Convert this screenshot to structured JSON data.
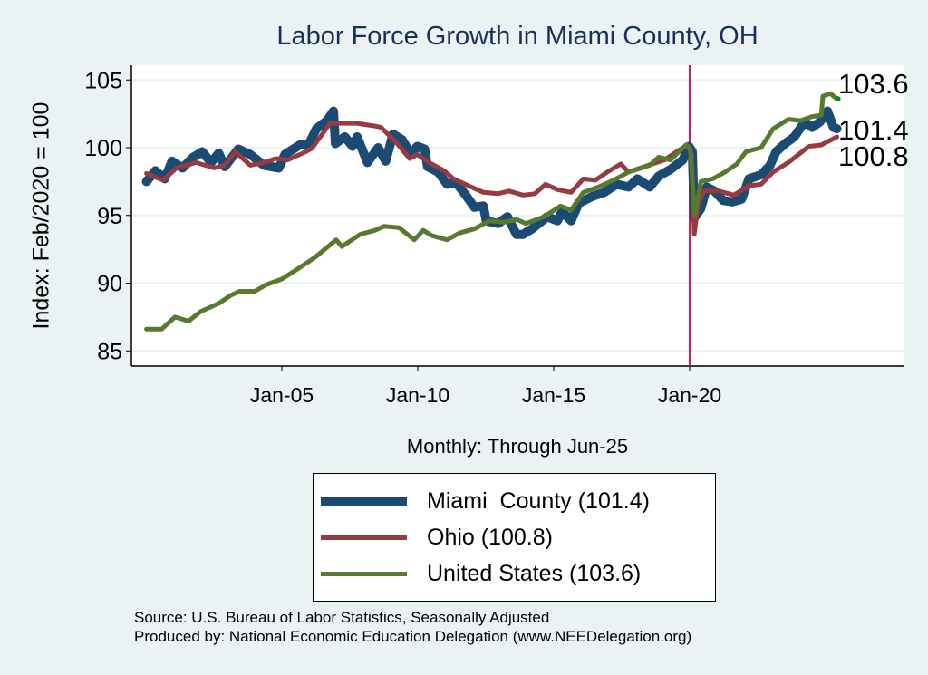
{
  "chart_data": {
    "type": "line",
    "title": "Labor Force Growth in Miami  County, OH",
    "ylabel": "Index: Feb/2020 = 100",
    "xlabel": "Monthly: Through Jun-25",
    "ylim": [
      84,
      106
    ],
    "xlim": [
      1999.5,
      2028.0
    ],
    "yticks": [
      85,
      90,
      95,
      100,
      105
    ],
    "ytick_labels": [
      "85",
      "90",
      "95",
      "100",
      "105"
    ],
    "xticks": [
      2005,
      2010,
      2015,
      2020
    ],
    "xtick_labels": [
      "Jan-05",
      "Jan-10",
      "Jan-15",
      "Jan-20"
    ],
    "grid": true,
    "vline": 2020.0,
    "legend_position": "bottom",
    "series": [
      {
        "name": "Miami  County (101.4)",
        "color": "#1b4a72",
        "last_label": "101.4",
        "x": [
          2000.02,
          2000.35,
          2000.69,
          2000.96,
          2001.35,
          2001.74,
          2002.07,
          2002.4,
          2002.68,
          2002.9,
          2003.4,
          2003.84,
          2004.34,
          2004.89,
          2005.11,
          2005.66,
          2006.0,
          2006.27,
          2006.66,
          2006.9,
          2006.97,
          2007.32,
          2007.6,
          2007.77,
          2008.15,
          2008.54,
          2008.82,
          2009.09,
          2009.42,
          2009.76,
          2009.98,
          2010.25,
          2010.36,
          2010.75,
          2011.08,
          2011.42,
          2011.8,
          2012.08,
          2012.41,
          2012.52,
          2012.96,
          2013.3,
          2013.63,
          2013.87,
          2014.2,
          2014.76,
          2015.14,
          2015.31,
          2015.64,
          2015.92,
          2016.42,
          2016.86,
          2017.31,
          2017.75,
          2018.08,
          2018.53,
          2018.86,
          2019.3,
          2019.75,
          2019.97,
          2020.1,
          2020.17,
          2020.41,
          2020.63,
          2020.91,
          2021.24,
          2021.57,
          2021.91,
          2022.18,
          2022.63,
          2022.96,
          2023.18,
          2023.51,
          2023.85,
          2024.23,
          2024.51,
          2024.79,
          2025.07,
          2025.29,
          2025.42
        ],
        "y": [
          97.5,
          98.3,
          97.7,
          99.0,
          98.5,
          99.3,
          99.7,
          98.9,
          99.6,
          98.6,
          99.9,
          99.5,
          98.7,
          98.5,
          99.5,
          100.2,
          100.3,
          101.4,
          102.0,
          102.7,
          100.3,
          100.8,
          100.1,
          100.8,
          98.9,
          100.0,
          99.0,
          101.0,
          100.6,
          99.5,
          100.1,
          99.9,
          98.6,
          98.2,
          97.3,
          97.4,
          96.4,
          95.6,
          95.7,
          94.6,
          94.4,
          94.9,
          93.6,
          93.6,
          94.0,
          94.9,
          94.6,
          95.3,
          94.6,
          95.9,
          96.4,
          96.7,
          97.3,
          97.1,
          97.7,
          97.1,
          97.9,
          98.4,
          99.1,
          100.1,
          99.7,
          94.8,
          95.5,
          97.1,
          96.8,
          96.1,
          96.0,
          96.2,
          97.7,
          98.0,
          98.7,
          99.7,
          100.3,
          100.8,
          101.9,
          101.5,
          101.9,
          102.7,
          101.5,
          101.4
        ]
      },
      {
        "name": "Ohio (100.8)",
        "color": "#973b40",
        "last_label": "100.8",
        "x": [
          2000.02,
          2000.63,
          2001.13,
          2001.85,
          2002.51,
          2002.9,
          2003.29,
          2003.84,
          2004.34,
          2004.78,
          2005.22,
          2005.88,
          2006.11,
          2006.77,
          2007.1,
          2007.77,
          2008.43,
          2008.65,
          2009.2,
          2009.7,
          2009.98,
          2010.42,
          2010.97,
          2011.31,
          2011.86,
          2012.41,
          2012.96,
          2013.35,
          2013.87,
          2014.31,
          2014.7,
          2015.14,
          2015.64,
          2016.09,
          2016.53,
          2016.97,
          2017.47,
          2017.75,
          2018.19,
          2018.64,
          2019.08,
          2019.52,
          2019.91,
          2020.08,
          2020.17,
          2020.3,
          2020.52,
          2021.07,
          2021.63,
          2022.18,
          2022.63,
          2023.07,
          2023.63,
          2024.07,
          2024.4,
          2024.84,
          2025.42
        ],
        "y": [
          98.1,
          97.6,
          98.5,
          98.9,
          98.5,
          98.7,
          99.7,
          98.7,
          98.9,
          99.2,
          99.1,
          99.7,
          99.95,
          101.8,
          101.8,
          101.8,
          101.6,
          101.5,
          100.4,
          99.2,
          99.5,
          98.9,
          98.3,
          97.7,
          97.2,
          96.7,
          96.6,
          96.8,
          96.5,
          96.6,
          97.3,
          96.9,
          96.7,
          97.7,
          97.6,
          98.2,
          98.8,
          98.2,
          98.5,
          98.8,
          99.1,
          99.7,
          100.2,
          99.5,
          93.6,
          95.7,
          96.8,
          96.8,
          96.5,
          97.2,
          97.3,
          98.2,
          98.9,
          99.6,
          100.1,
          100.2,
          100.8
        ]
      },
      {
        "name": "United States (103.6)",
        "color": "#577a2f",
        "last_label": "103.6",
        "x": [
          2000.02,
          2000.58,
          2001.07,
          2001.57,
          2002.01,
          2002.68,
          2003.12,
          2003.45,
          2004.0,
          2004.45,
          2005.0,
          2005.55,
          2006.22,
          2007.0,
          2007.21,
          2007.88,
          2008.43,
          2008.76,
          2009.31,
          2009.87,
          2010.2,
          2010.53,
          2011.08,
          2011.53,
          2012.08,
          2012.63,
          2013.19,
          2013.63,
          2013.98,
          2014.65,
          2015.25,
          2015.64,
          2016.09,
          2016.64,
          2017.2,
          2017.75,
          2018.08,
          2018.53,
          2018.86,
          2019.3,
          2019.86,
          2020.02,
          2020.19,
          2020.41,
          2020.85,
          2021.3,
          2021.74,
          2022.07,
          2022.63,
          2023.07,
          2023.63,
          2024.07,
          2024.51,
          2024.84,
          2024.9,
          2025.18,
          2025.42
        ],
        "y": [
          86.6,
          86.6,
          87.5,
          87.2,
          87.9,
          88.5,
          89.1,
          89.4,
          89.4,
          89.9,
          90.3,
          91.0,
          91.9,
          93.2,
          92.7,
          93.6,
          93.9,
          94.2,
          94.1,
          93.2,
          93.9,
          93.5,
          93.2,
          93.7,
          94.0,
          94.6,
          94.5,
          94.7,
          94.4,
          94.9,
          95.7,
          95.4,
          96.7,
          97.1,
          97.6,
          98.2,
          98.4,
          98.7,
          99.3,
          99.1,
          100.2,
          99.95,
          95.0,
          97.5,
          97.7,
          98.2,
          98.8,
          99.7,
          100.0,
          101.4,
          102.1,
          102.0,
          102.3,
          102.4,
          103.8,
          104.0,
          103.6
        ]
      }
    ]
  },
  "source_line": "Source: U.S. Bureau of Labor Statistics, Seasonally Adjusted",
  "produced_line": "Produced by: National Economic Education Delegation (www.NEEDelegation.org)"
}
